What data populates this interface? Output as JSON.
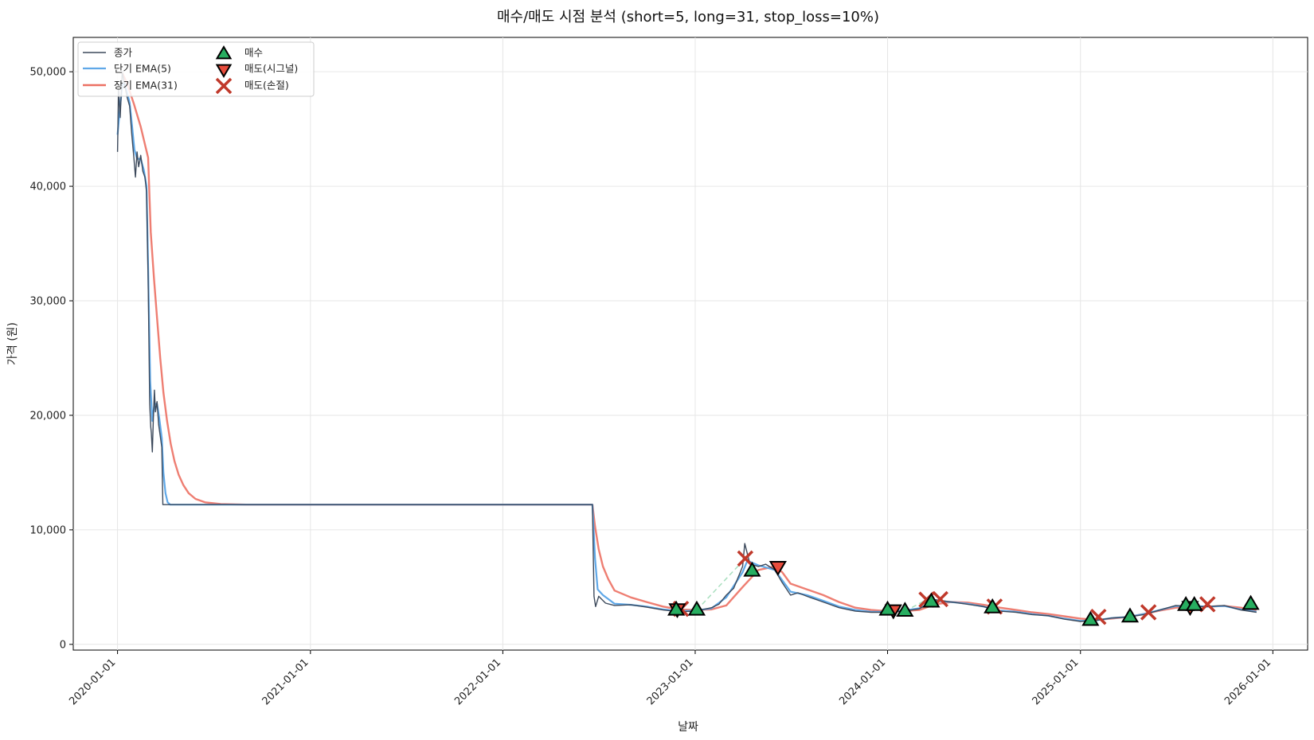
{
  "chart_data": {
    "type": "line",
    "title": "매수/매도 시점 분석 (short=5, long=31, stop_loss=10%)",
    "xlabel": "날짜",
    "ylabel": "가격 (원)",
    "x_ticks": [
      "2020-01-01",
      "2021-01-01",
      "2022-01-01",
      "2023-01-01",
      "2024-01-01",
      "2025-01-01",
      "2026-01-01"
    ],
    "y_ticks": [
      0,
      10000,
      20000,
      30000,
      40000,
      50000
    ],
    "y_tick_labels": [
      "0",
      "10,000",
      "20,000",
      "30,000",
      "40,000",
      "50,000"
    ],
    "xlim": [
      "2019-10-09",
      "2026-03-08"
    ],
    "ylim": [
      -500,
      53000
    ],
    "grid": true,
    "legend_position": "top-left",
    "colors": {
      "close": "#3d4a5c",
      "short_ema": "#5fa8e8",
      "long_ema": "#ec7063",
      "buy": "#27ae60",
      "sell_signal": "#e74c3c",
      "sell_stop": "#c0392b",
      "trade_line": "#a9dfbf"
    },
    "legend": [
      {
        "key": "close",
        "label": "종가"
      },
      {
        "key": "short_ema",
        "label": "단기 EMA(5)"
      },
      {
        "key": "long_ema",
        "label": "장기 EMA(31)"
      },
      {
        "key": "buy",
        "label": "매수"
      },
      {
        "key": "sell_signal",
        "label": "매도(시그널)"
      },
      {
        "key": "sell_stop",
        "label": "매도(손절)"
      }
    ],
    "series": [
      {
        "name": "종가",
        "key": "close",
        "points": [
          [
            "2020-01-01",
            43000
          ],
          [
            "2020-01-03",
            48500
          ],
          [
            "2020-01-06",
            46000
          ],
          [
            "2020-01-10",
            50000
          ],
          [
            "2020-01-14",
            49000
          ],
          [
            "2020-01-19",
            47800
          ],
          [
            "2020-01-24",
            47000
          ],
          [
            "2020-01-28",
            44500
          ],
          [
            "2020-02-01",
            42500
          ],
          [
            "2020-02-04",
            40800
          ],
          [
            "2020-02-07",
            43000
          ],
          [
            "2020-02-10",
            41700
          ],
          [
            "2020-02-14",
            42700
          ],
          [
            "2020-02-18",
            41300
          ],
          [
            "2020-02-22",
            40800
          ],
          [
            "2020-02-25",
            39500
          ],
          [
            "2020-02-28",
            32000
          ],
          [
            "2020-03-02",
            21000
          ],
          [
            "2020-03-04",
            19000
          ],
          [
            "2020-03-05",
            18500
          ],
          [
            "2020-03-07",
            16800
          ],
          [
            "2020-03-09",
            19800
          ],
          [
            "2020-03-11",
            22200
          ],
          [
            "2020-03-13",
            20300
          ],
          [
            "2020-03-16",
            21200
          ],
          [
            "2020-03-19",
            19200
          ],
          [
            "2020-03-22",
            18200
          ],
          [
            "2020-03-25",
            17200
          ],
          [
            "2020-03-27",
            12200
          ],
          [
            "2022-06-20",
            12200
          ],
          [
            "2022-06-23",
            4200
          ],
          [
            "2022-06-26",
            3300
          ],
          [
            "2022-07-02",
            4200
          ],
          [
            "2022-07-15",
            3600
          ],
          [
            "2022-08-01",
            3400
          ],
          [
            "2022-09-01",
            3450
          ],
          [
            "2022-10-01",
            3250
          ],
          [
            "2022-11-01",
            3000
          ],
          [
            "2022-12-01",
            2850
          ],
          [
            "2023-01-01",
            2900
          ],
          [
            "2023-02-01",
            3200
          ],
          [
            "2023-02-15",
            3500
          ],
          [
            "2023-03-01",
            4300
          ],
          [
            "2023-03-15",
            4900
          ],
          [
            "2023-04-01",
            6800
          ],
          [
            "2023-04-05",
            8800
          ],
          [
            "2023-04-15",
            7000
          ],
          [
            "2023-05-01",
            6800
          ],
          [
            "2023-05-15",
            7000
          ],
          [
            "2023-06-01",
            6500
          ],
          [
            "2023-06-15",
            5400
          ],
          [
            "2023-07-01",
            4300
          ],
          [
            "2023-07-15",
            4500
          ],
          [
            "2023-08-01",
            4200
          ],
          [
            "2023-09-01",
            3700
          ],
          [
            "2023-10-01",
            3200
          ],
          [
            "2023-11-01",
            2900
          ],
          [
            "2023-12-01",
            2800
          ],
          [
            "2024-01-01",
            2800
          ],
          [
            "2024-02-01",
            2900
          ],
          [
            "2024-03-01",
            3100
          ],
          [
            "2024-04-01",
            3900
          ],
          [
            "2024-05-01",
            3700
          ],
          [
            "2024-06-01",
            3500
          ],
          [
            "2024-07-01",
            3300
          ],
          [
            "2024-08-01",
            2900
          ],
          [
            "2024-09-01",
            2800
          ],
          [
            "2024-10-01",
            2600
          ],
          [
            "2024-11-01",
            2500
          ],
          [
            "2024-12-01",
            2200
          ],
          [
            "2025-01-01",
            2000
          ],
          [
            "2025-02-01",
            2100
          ],
          [
            "2025-03-01",
            2300
          ],
          [
            "2025-04-01",
            2400
          ],
          [
            "2025-05-01",
            2600
          ],
          [
            "2025-06-01",
            3000
          ],
          [
            "2025-07-01",
            3400
          ],
          [
            "2025-08-01",
            3300
          ],
          [
            "2025-09-01",
            3300
          ],
          [
            "2025-10-01",
            3400
          ],
          [
            "2025-11-01",
            3000
          ],
          [
            "2025-12-01",
            2800
          ]
        ]
      },
      {
        "name": "단기 EMA(5)",
        "key": "short_ema",
        "points": [
          [
            "2020-01-01",
            44500
          ],
          [
            "2020-01-06",
            47000
          ],
          [
            "2020-01-10",
            48800
          ],
          [
            "2020-01-14",
            49000
          ],
          [
            "2020-01-19",
            48200
          ],
          [
            "2020-01-24",
            47300
          ],
          [
            "2020-01-28",
            45500
          ],
          [
            "2020-02-02",
            43200
          ],
          [
            "2020-02-07",
            42400
          ],
          [
            "2020-02-14",
            42400
          ],
          [
            "2020-02-20",
            41400
          ],
          [
            "2020-02-25",
            40000
          ],
          [
            "2020-02-28",
            33000
          ],
          [
            "2020-03-03",
            23000
          ],
          [
            "2020-03-07",
            19500
          ],
          [
            "2020-03-11",
            21000
          ],
          [
            "2020-03-16",
            21000
          ],
          [
            "2020-03-20",
            19800
          ],
          [
            "2020-03-25",
            18000
          ],
          [
            "2020-03-28",
            15000
          ],
          [
            "2020-04-01",
            13200
          ],
          [
            "2020-04-05",
            12400
          ],
          [
            "2020-04-10",
            12200
          ],
          [
            "2022-06-20",
            12200
          ],
          [
            "2022-06-25",
            7500
          ],
          [
            "2022-06-30",
            4800
          ],
          [
            "2022-07-10",
            4300
          ],
          [
            "2022-08-01",
            3550
          ],
          [
            "2022-09-01",
            3450
          ],
          [
            "2022-10-01",
            3300
          ],
          [
            "2022-11-01",
            3050
          ],
          [
            "2022-12-01",
            2900
          ],
          [
            "2023-01-01",
            2950
          ],
          [
            "2023-02-01",
            3150
          ],
          [
            "2023-03-01",
            4100
          ],
          [
            "2023-04-01",
            6300
          ],
          [
            "2023-04-10",
            7300
          ],
          [
            "2023-05-01",
            6900
          ],
          [
            "2023-06-01",
            6500
          ],
          [
            "2023-07-01",
            4600
          ],
          [
            "2023-08-01",
            4300
          ],
          [
            "2023-09-01",
            3800
          ],
          [
            "2023-10-01",
            3300
          ],
          [
            "2023-11-01",
            3000
          ],
          [
            "2023-12-01",
            2850
          ],
          [
            "2024-01-01",
            2850
          ],
          [
            "2024-02-01",
            2950
          ],
          [
            "2024-03-01",
            3150
          ],
          [
            "2024-04-01",
            3800
          ],
          [
            "2024-05-01",
            3700
          ],
          [
            "2024-06-01",
            3550
          ],
          [
            "2024-07-01",
            3300
          ],
          [
            "2024-08-01",
            2950
          ],
          [
            "2024-09-01",
            2850
          ],
          [
            "2024-10-01",
            2650
          ],
          [
            "2024-11-01",
            2500
          ],
          [
            "2024-12-01",
            2250
          ],
          [
            "2025-01-01",
            2050
          ],
          [
            "2025-02-01",
            2100
          ],
          [
            "2025-03-01",
            2300
          ],
          [
            "2025-04-01",
            2400
          ],
          [
            "2025-05-01",
            2650
          ],
          [
            "2025-06-01",
            3000
          ],
          [
            "2025-07-01",
            3350
          ],
          [
            "2025-08-01",
            3350
          ],
          [
            "2025-09-01",
            3300
          ],
          [
            "2025-10-01",
            3350
          ],
          [
            "2025-11-01",
            3050
          ],
          [
            "2025-12-01",
            2850
          ]
        ]
      },
      {
        "name": "장기 EMA(31)",
        "key": "long_ema",
        "points": [
          [
            "2020-01-09",
            50000
          ],
          [
            "2020-01-19",
            49000
          ],
          [
            "2020-02-01",
            47200
          ],
          [
            "2020-02-14",
            45200
          ],
          [
            "2020-02-28",
            42500
          ],
          [
            "2020-03-04",
            36000
          ],
          [
            "2020-03-10",
            32000
          ],
          [
            "2020-03-16",
            28500
          ],
          [
            "2020-03-22",
            25000
          ],
          [
            "2020-03-28",
            22000
          ],
          [
            "2020-04-04",
            19500
          ],
          [
            "2020-04-11",
            17500
          ],
          [
            "2020-04-18",
            16000
          ],
          [
            "2020-04-26",
            14800
          ],
          [
            "2020-05-05",
            13900
          ],
          [
            "2020-05-15",
            13200
          ],
          [
            "2020-05-28",
            12700
          ],
          [
            "2020-06-15",
            12400
          ],
          [
            "2020-07-15",
            12250
          ],
          [
            "2020-09-01",
            12200
          ],
          [
            "2022-06-20",
            12200
          ],
          [
            "2022-06-25",
            10300
          ],
          [
            "2022-07-02",
            8300
          ],
          [
            "2022-07-10",
            6800
          ],
          [
            "2022-07-20",
            5700
          ],
          [
            "2022-08-01",
            4700
          ],
          [
            "2022-09-01",
            4100
          ],
          [
            "2022-10-01",
            3700
          ],
          [
            "2022-11-01",
            3300
          ],
          [
            "2022-12-01",
            3050
          ],
          [
            "2023-01-01",
            3000
          ],
          [
            "2023-02-01",
            3050
          ],
          [
            "2023-03-01",
            3400
          ],
          [
            "2023-04-01",
            5000
          ],
          [
            "2023-05-01",
            6500
          ],
          [
            "2023-06-01",
            6800
          ],
          [
            "2023-06-15",
            6300
          ],
          [
            "2023-07-01",
            5300
          ],
          [
            "2023-08-01",
            4800
          ],
          [
            "2023-09-01",
            4300
          ],
          [
            "2023-10-01",
            3700
          ],
          [
            "2023-11-01",
            3200
          ],
          [
            "2023-12-01",
            3000
          ],
          [
            "2024-01-01",
            2900
          ],
          [
            "2024-02-01",
            2900
          ],
          [
            "2024-03-01",
            3000
          ],
          [
            "2024-04-01",
            3500
          ],
          [
            "2024-05-01",
            3700
          ],
          [
            "2024-06-01",
            3650
          ],
          [
            "2024-07-01",
            3450
          ],
          [
            "2024-08-01",
            3200
          ],
          [
            "2024-09-01",
            3000
          ],
          [
            "2024-10-01",
            2800
          ],
          [
            "2024-11-01",
            2650
          ],
          [
            "2024-12-01",
            2450
          ],
          [
            "2025-01-01",
            2250
          ],
          [
            "2025-02-01",
            2150
          ],
          [
            "2025-03-01",
            2250
          ],
          [
            "2025-04-01",
            2400
          ],
          [
            "2025-05-01",
            2650
          ],
          [
            "2025-06-01",
            2950
          ],
          [
            "2025-07-01",
            3200
          ],
          [
            "2025-08-01",
            3300
          ],
          [
            "2025-09-01",
            3300
          ],
          [
            "2025-10-01",
            3350
          ],
          [
            "2025-11-01",
            3200
          ],
          [
            "2025-12-01",
            3000
          ]
        ]
      }
    ],
    "buy_points": [
      [
        "2022-11-26",
        3000
      ],
      [
        "2023-01-04",
        3000
      ],
      [
        "2023-04-19",
        6400
      ],
      [
        "2024-01-01",
        3000
      ],
      [
        "2024-02-03",
        2900
      ],
      [
        "2024-03-24",
        3700
      ],
      [
        "2024-07-18",
        3200
      ],
      [
        "2025-01-20",
        2100
      ],
      [
        "2025-04-05",
        2400
      ],
      [
        "2025-07-20",
        3400
      ],
      [
        "2025-08-05",
        3400
      ],
      [
        "2025-11-20",
        3500
      ]
    ],
    "sell_signal_points": [
      [
        "2022-11-28",
        3100
      ],
      [
        "2023-06-07",
        6800
      ],
      [
        "2024-01-12",
        3000
      ],
      [
        "2025-07-28",
        3300
      ]
    ],
    "sell_stop_points": [
      [
        "2022-12-05",
        3100
      ],
      [
        "2023-04-06",
        7500
      ],
      [
        "2024-03-15",
        3900
      ],
      [
        "2024-04-10",
        3950
      ],
      [
        "2024-07-22",
        3300
      ],
      [
        "2025-02-04",
        2400
      ],
      [
        "2025-05-10",
        2800
      ],
      [
        "2025-08-30",
        3500
      ]
    ],
    "trade_line_segments": [
      [
        [
          "2023-01-04",
          3000
        ],
        [
          "2023-04-06",
          7500
        ]
      ],
      [
        [
          "2024-02-03",
          2900
        ],
        [
          "2024-03-15",
          3900
        ]
      ],
      [
        [
          "2025-04-05",
          2400
        ],
        [
          "2025-05-10",
          2800
        ]
      ]
    ]
  }
}
